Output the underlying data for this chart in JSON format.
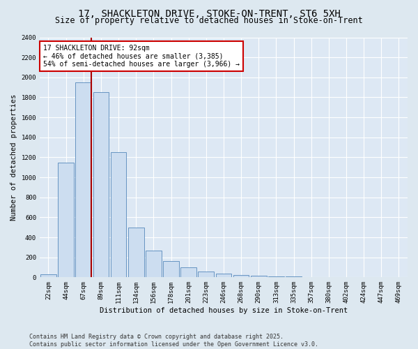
{
  "title1": "17, SHACKLETON DRIVE, STOKE-ON-TRENT, ST6 5XH",
  "title2": "Size of property relative to detached houses in Stoke-on-Trent",
  "xlabel": "Distribution of detached houses by size in Stoke-on-Trent",
  "ylabel": "Number of detached properties",
  "categories": [
    "22sqm",
    "44sqm",
    "67sqm",
    "89sqm",
    "111sqm",
    "134sqm",
    "156sqm",
    "178sqm",
    "201sqm",
    "223sqm",
    "246sqm",
    "268sqm",
    "290sqm",
    "313sqm",
    "335sqm",
    "357sqm",
    "380sqm",
    "402sqm",
    "424sqm",
    "447sqm",
    "469sqm"
  ],
  "values": [
    30,
    1150,
    1950,
    1850,
    1250,
    500,
    270,
    160,
    100,
    55,
    40,
    25,
    15,
    10,
    8,
    5,
    4,
    3,
    2,
    2,
    5
  ],
  "bar_color": "#ccddf0",
  "bar_edge_color": "#5588bb",
  "vline_x_index": 2,
  "vline_color": "#aa0000",
  "annotation_text": "17 SHACKLETON DRIVE: 92sqm\n← 46% of detached houses are smaller (3,385)\n54% of semi-detached houses are larger (3,966) →",
  "annotation_box_color": "#ffffff",
  "annotation_box_edge": "#cc0000",
  "ylim": [
    0,
    2400
  ],
  "yticks": [
    0,
    200,
    400,
    600,
    800,
    1000,
    1200,
    1400,
    1600,
    1800,
    2000,
    2200,
    2400
  ],
  "bg_color": "#dde8f0",
  "plot_bg": "#dde8f4",
  "grid_color": "#ffffff",
  "footer1": "Contains HM Land Registry data © Crown copyright and database right 2025.",
  "footer2": "Contains public sector information licensed under the Open Government Licence v3.0.",
  "title_fontsize": 10,
  "subtitle_fontsize": 8.5,
  "axis_label_fontsize": 7.5,
  "tick_fontsize": 6.5,
  "annotation_fontsize": 7,
  "footer_fontsize": 6
}
